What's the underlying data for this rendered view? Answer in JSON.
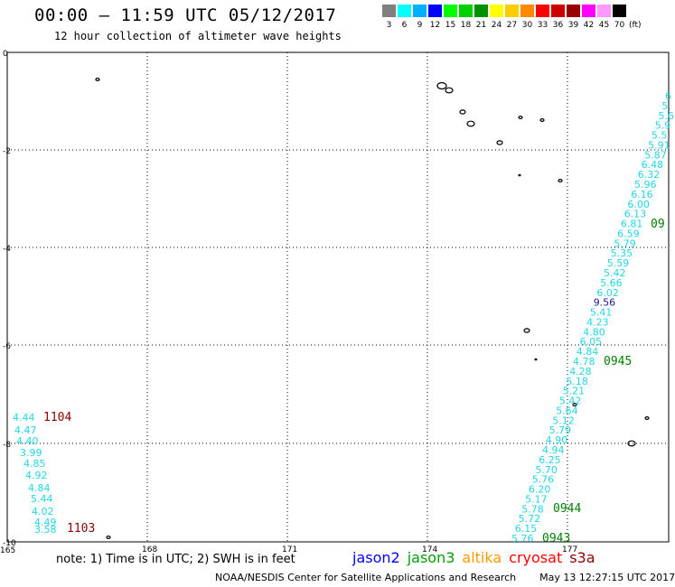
{
  "header": {
    "title": "00:00 – 11:59 UTC 05/12/2017",
    "subtitle": "12 hour collection of altimeter wave heights"
  },
  "legend": {
    "colors": [
      "#808080",
      "#00ffff",
      "#00b0ff",
      "#0000ff",
      "#00ff00",
      "#00d000",
      "#009000",
      "#ffff00",
      "#ffcc00",
      "#ff8800",
      "#ff0000",
      "#cc0000",
      "#990000",
      "#ff00ff",
      "#ff99ff",
      "#000000"
    ],
    "labels": [
      "3",
      "6",
      "9",
      "12",
      "15",
      "18",
      "21",
      "24",
      "27",
      "30",
      "33",
      "36",
      "39",
      "42",
      "45",
      "70",
      "(ft)"
    ]
  },
  "map": {
    "lat_labels": [
      "0",
      "-2",
      "-4",
      "-6",
      "-8",
      "-10"
    ],
    "lon_labels": [
      "165",
      "168",
      "171",
      "174",
      "177"
    ]
  },
  "tracks": [
    {
      "pass": "1104",
      "pass_color": "#8b0000",
      "values": [
        "4.44",
        "4.47",
        "4.40",
        "3.99",
        "4.85",
        "4.92",
        "4.84",
        "5.44",
        "4.02",
        "4.49",
        "3.58"
      ]
    },
    {
      "pass": "1103",
      "pass_color": "#8b0000",
      "values": []
    },
    {
      "pass": "0945",
      "pass_color": "#008000",
      "values": [
        "6",
        "5.",
        "5.6",
        "5.9",
        "5.5",
        "5.91",
        "5.87",
        "6.48",
        "6.32",
        "5.96",
        "6.16",
        "6.00",
        "6.13",
        "6.81",
        "6.59",
        "5.79",
        "5.35",
        "5.59",
        "5.42",
        "5.66",
        "6.02",
        "9.56",
        "5.41",
        "4.23",
        "4.80",
        "6.05",
        "4.84",
        "4.78",
        "4.28",
        "5.18",
        "5.21",
        "5.42",
        "5.64",
        "5.12",
        "5.79",
        "4.90",
        "4.94",
        "6.25",
        "5.70",
        "5.76",
        "6.20",
        "5.17",
        "5.78",
        "5.72",
        "6.15",
        "5.76"
      ]
    },
    {
      "pass": "09",
      "pass_color": "#008000",
      "values": []
    },
    {
      "pass": "0944",
      "pass_color": "#008000",
      "values": []
    },
    {
      "pass": "0943",
      "pass_color": "#008000",
      "values": []
    }
  ],
  "note": "note: 1) Time is in UTC; 2) SWH is in feet",
  "satellites": [
    {
      "name": "jason2",
      "color": "#0000ff"
    },
    {
      "name": "jason3",
      "color": "#00a000"
    },
    {
      "name": "altika",
      "color": "#ff9900"
    },
    {
      "name": "cryosat",
      "color": "#ff0000"
    },
    {
      "name": "s3a",
      "color": "#8b0000"
    }
  ],
  "footer": {
    "agency": "NOAA/NESDIS Center for Satellite Applications and Research",
    "timestamp": "May 13 12:27:15 UTC 2017"
  }
}
